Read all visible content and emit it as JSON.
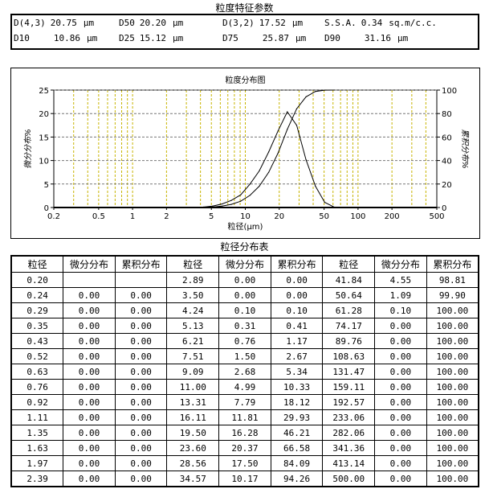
{
  "params_title": "粒度特征参数",
  "params": [
    {
      "label": "D(4,3)",
      "value": "20.75",
      "unit": "μm"
    },
    {
      "label": "D50",
      "value": "20.20",
      "unit": "μm"
    },
    {
      "label": "D(3,2)",
      "value": "17.52",
      "unit": "μm"
    },
    {
      "label": "S.S.A.",
      "value": "0.34",
      "unit": "sq.m/c.c."
    },
    {
      "label": "D10",
      "value": "10.86",
      "unit": "μm"
    },
    {
      "label": "D25",
      "value": "15.12",
      "unit": "μm"
    },
    {
      "label": "D75",
      "value": "25.87",
      "unit": "μm"
    },
    {
      "label": "D90",
      "value": "31.16",
      "unit": "μm"
    }
  ],
  "chart_data": {
    "type": "line",
    "title": "粒度分布图",
    "xlabel": "粒径(μm)",
    "ylabel": "微分分布%",
    "y2label": "累积分布%",
    "xscale": "log",
    "xlim": [
      0.2,
      500
    ],
    "ylim": [
      0,
      25
    ],
    "y2lim": [
      0,
      100
    ],
    "xticks": [
      "0.2",
      "0.5",
      "1",
      "2",
      "5",
      "10",
      "20",
      "50",
      "100",
      "200",
      "500"
    ],
    "yticks": [
      "0",
      "5",
      "10",
      "15",
      "20",
      "25"
    ],
    "y2ticks": [
      "0",
      "20",
      "40",
      "60",
      "80",
      "100"
    ],
    "grid": true,
    "x": [
      2.89,
      3.5,
      4.24,
      5.13,
      6.21,
      7.51,
      9.09,
      11.0,
      13.31,
      16.11,
      19.5,
      23.6,
      28.56,
      34.57,
      41.84,
      50.64,
      61.28
    ],
    "series": [
      {
        "name": "微分分布",
        "axis": "left",
        "values": [
          0,
          0,
          0.1,
          0.31,
          0.76,
          1.5,
          2.68,
          4.99,
          7.79,
          11.81,
          16.28,
          20.37,
          17.5,
          10.17,
          4.55,
          1.09,
          0.1
        ]
      },
      {
        "name": "累积分布",
        "axis": "right",
        "values": [
          0,
          0,
          0.1,
          0.41,
          1.17,
          2.67,
          5.34,
          10.33,
          18.12,
          29.93,
          46.21,
          66.58,
          84.09,
          94.26,
          98.81,
          99.9,
          100
        ]
      }
    ]
  },
  "table_title": "粒径分布表",
  "table_headers": [
    "粒径",
    "微分分布",
    "累积分布",
    "粒径",
    "微分分布",
    "累积分布",
    "粒径",
    "微分分布",
    "累积分布"
  ],
  "table_rows": [
    [
      "0.20",
      "",
      "",
      "2.89",
      "0.00",
      "0.00",
      "41.84",
      "4.55",
      "98.81"
    ],
    [
      "0.24",
      "0.00",
      "0.00",
      "3.50",
      "0.00",
      "0.00",
      "50.64",
      "1.09",
      "99.90"
    ],
    [
      "0.29",
      "0.00",
      "0.00",
      "4.24",
      "0.10",
      "0.10",
      "61.28",
      "0.10",
      "100.00"
    ],
    [
      "0.35",
      "0.00",
      "0.00",
      "5.13",
      "0.31",
      "0.41",
      "74.17",
      "0.00",
      "100.00"
    ],
    [
      "0.43",
      "0.00",
      "0.00",
      "6.21",
      "0.76",
      "1.17",
      "89.76",
      "0.00",
      "100.00"
    ],
    [
      "0.52",
      "0.00",
      "0.00",
      "7.51",
      "1.50",
      "2.67",
      "108.63",
      "0.00",
      "100.00"
    ],
    [
      "0.63",
      "0.00",
      "0.00",
      "9.09",
      "2.68",
      "5.34",
      "131.47",
      "0.00",
      "100.00"
    ],
    [
      "0.76",
      "0.00",
      "0.00",
      "11.00",
      "4.99",
      "10.33",
      "159.11",
      "0.00",
      "100.00"
    ],
    [
      "0.92",
      "0.00",
      "0.00",
      "13.31",
      "7.79",
      "18.12",
      "192.57",
      "0.00",
      "100.00"
    ],
    [
      "1.11",
      "0.00",
      "0.00",
      "16.11",
      "11.81",
      "29.93",
      "233.06",
      "0.00",
      "100.00"
    ],
    [
      "1.35",
      "0.00",
      "0.00",
      "19.50",
      "16.28",
      "46.21",
      "282.06",
      "0.00",
      "100.00"
    ],
    [
      "1.63",
      "0.00",
      "0.00",
      "23.60",
      "20.37",
      "66.58",
      "341.36",
      "0.00",
      "100.00"
    ],
    [
      "1.97",
      "0.00",
      "0.00",
      "28.56",
      "17.50",
      "84.09",
      "413.14",
      "0.00",
      "100.00"
    ],
    [
      "2.39",
      "0.00",
      "0.00",
      "34.57",
      "10.17",
      "94.26",
      "500.00",
      "0.00",
      "100.00"
    ]
  ]
}
